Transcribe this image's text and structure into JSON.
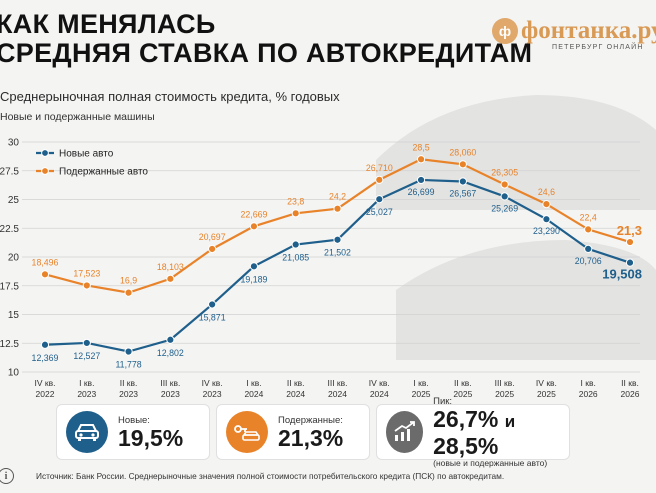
{
  "header": {
    "title_line1": "КАК МЕНЯЛАСЬ",
    "title_line2": "СРЕДНЯЯ СТАВКА ПО АВТОКРЕДИТАМ",
    "subtitle": "Среднерыночная полная стоимость кредита, % годовых",
    "subnote": "Новые и подержанные машины"
  },
  "logo": {
    "mark": "ф",
    "name": "фонтанка.ру",
    "tagline": "ПЕТЕРБУРГ ОНЛАЙН"
  },
  "colors": {
    "new": "#1f5f8b",
    "used": "#e8832a",
    "grid": "#d2d2d2"
  },
  "chart_data": {
    "type": "line",
    "categories": [
      [
        "IV кв.",
        "2022"
      ],
      [
        "I кв.",
        "2023"
      ],
      [
        "II кв.",
        "2023"
      ],
      [
        "III кв.",
        "2023"
      ],
      [
        "IV кв.",
        "2023"
      ],
      [
        "I кв.",
        "2024"
      ],
      [
        "II кв.",
        "2024"
      ],
      [
        "III кв.",
        "2024"
      ],
      [
        "IV кв.",
        "2024"
      ],
      [
        "I кв.",
        "2025"
      ],
      [
        "II кв.",
        "2025"
      ],
      [
        "III кв.",
        "2025"
      ],
      [
        "IV кв.",
        "2025"
      ],
      [
        "I кв.",
        "2026"
      ],
      [
        "II кв.",
        "2026"
      ]
    ],
    "ylim": [
      10,
      30
    ],
    "yticks": [
      "10",
      "12.5",
      "15",
      "17.5",
      "20",
      "22.5",
      "25",
      "27.5",
      "30"
    ],
    "grid": true,
    "legend_position": "top-left",
    "series": [
      {
        "name": "Новые авто",
        "values": [
          12.369,
          12.527,
          11.778,
          12.802,
          15.871,
          19.189,
          21.085,
          21.502,
          25.027,
          26.699,
          26.567,
          25.269,
          23.29,
          20.706,
          19.508
        ],
        "labels": [
          "12,369",
          "12,527",
          "11,778",
          "12,802",
          "15,871",
          "19,189",
          "21,085",
          "21,502",
          "25,027",
          "26,699",
          "26,567",
          "25,269",
          "23,290",
          "20,706",
          "19,508"
        ]
      },
      {
        "name": "Подержанные авто",
        "values": [
          18.496,
          17.523,
          16.9,
          18.103,
          20.697,
          22.669,
          23.8,
          24.2,
          26.71,
          28.5,
          28.06,
          26.305,
          24.6,
          22.4,
          21.3
        ],
        "labels": [
          "18,496",
          "17,523",
          "16,9",
          "18,103",
          "20,697",
          "22,669",
          "23,8",
          "24,2",
          "26,710",
          "28,5",
          "28,060",
          "26,305",
          "24,6",
          "22,4",
          "21,3"
        ]
      }
    ]
  },
  "cards": {
    "new": {
      "label": "Новые:",
      "value": "19,5%"
    },
    "used": {
      "label": "Подержанные:",
      "value": "21,3%"
    },
    "peak": {
      "label": "Пик:",
      "value_a": "26,7%",
      "conj": "и",
      "value_b": "28,5%",
      "note": "(новые и подержанные авто)"
    }
  },
  "icons": {
    "new": "car-icon",
    "used": "car-key-icon",
    "peak": "growth-chart-icon",
    "info": "info-icon"
  },
  "footer": {
    "info_glyph": "i",
    "source": "Источник: Банк России. Среднерыночные значения полной стоимости потребительского кредита (ПСК) по автокредитам."
  }
}
